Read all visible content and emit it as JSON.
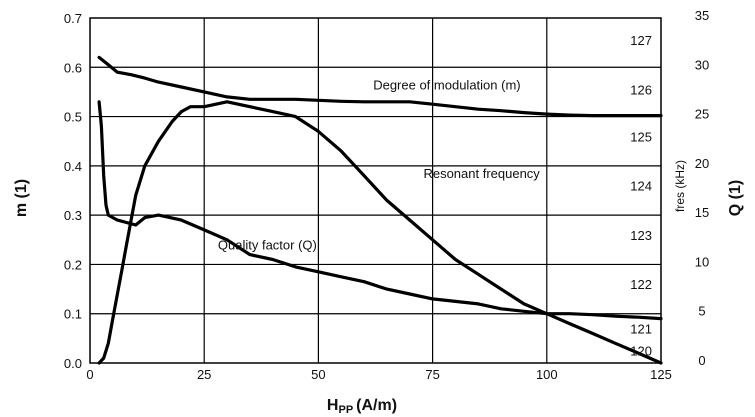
{
  "chart_data": {
    "type": "line",
    "xlabel": "H",
    "xlabel_sub": "PP",
    "xlabel_unit": "(A/m)",
    "ylabel_left": "m (1)",
    "ylabel_right": "Q (1)",
    "ylabel_fres": "fres (kHz)",
    "xlim": [
      0,
      125
    ],
    "ylim_left": [
      0,
      0.7
    ],
    "ylim_right": [
      0,
      35
    ],
    "grid": true,
    "x_ticks": [
      "0",
      "25",
      "50",
      "75",
      "100",
      "125"
    ],
    "y_left_ticks": [
      "0.0",
      "0.1",
      "0.2",
      "0.3",
      "0.4",
      "0.5",
      "0.6",
      "0.7"
    ],
    "y_right_ticks": [
      "0",
      "5",
      "10",
      "15",
      "20",
      "25",
      "30",
      "35"
    ],
    "fres_ticks": [
      {
        "label": "120",
        "m": 0.025
      },
      {
        "label": "121",
        "m": 0.07
      },
      {
        "label": "122",
        "m": 0.16
      },
      {
        "label": "123",
        "m": 0.26
      },
      {
        "label": "124",
        "m": 0.36
      },
      {
        "label": "125",
        "m": 0.46
      },
      {
        "label": "126",
        "m": 0.555
      },
      {
        "label": "127",
        "m": 0.655
      }
    ],
    "series": [
      {
        "name": "Degree of modulation (m)",
        "label_at": [
          62,
          0.555
        ],
        "x": [
          2,
          4,
          6,
          9,
          12,
          15,
          20,
          25,
          30,
          35,
          40,
          45,
          50,
          55,
          60,
          65,
          70,
          75,
          80,
          85,
          90,
          95,
          100,
          105,
          110,
          115,
          120,
          125
        ],
        "y": [
          0.62,
          0.605,
          0.59,
          0.585,
          0.578,
          0.57,
          0.56,
          0.55,
          0.54,
          0.535,
          0.535,
          0.535,
          0.533,
          0.531,
          0.53,
          0.53,
          0.53,
          0.525,
          0.52,
          0.515,
          0.512,
          0.508,
          0.505,
          0.503,
          0.502,
          0.502,
          0.502,
          0.502
        ]
      },
      {
        "name": "Resonant frequency",
        "label_at": [
          73,
          0.375
        ],
        "x": [
          2,
          3,
          4,
          5,
          6,
          7,
          8,
          9,
          10,
          12,
          15,
          18,
          20,
          22,
          25,
          30,
          35,
          40,
          45,
          50,
          55,
          60,
          65,
          70,
          75,
          80,
          85,
          90,
          95,
          100,
          105,
          110,
          115,
          120,
          125
        ],
        "y": [
          0.0,
          0.01,
          0.04,
          0.09,
          0.14,
          0.19,
          0.24,
          0.29,
          0.34,
          0.4,
          0.45,
          0.49,
          0.51,
          0.52,
          0.52,
          0.53,
          0.52,
          0.51,
          0.5,
          0.47,
          0.43,
          0.38,
          0.33,
          0.29,
          0.25,
          0.21,
          0.18,
          0.15,
          0.12,
          0.1,
          0.08,
          0.06,
          0.04,
          0.02,
          0.0
        ]
      },
      {
        "name": "Quality factor (Q)",
        "label_at": [
          28,
          0.23
        ],
        "x": [
          2,
          2.5,
          3,
          3.5,
          4,
          5,
          6,
          8,
          10,
          12,
          15,
          20,
          25,
          30,
          35,
          40,
          45,
          50,
          55,
          60,
          65,
          70,
          75,
          80,
          85,
          90,
          95,
          100,
          105,
          110,
          115,
          120,
          125
        ],
        "y": [
          0.53,
          0.48,
          0.38,
          0.32,
          0.3,
          0.295,
          0.29,
          0.285,
          0.28,
          0.295,
          0.3,
          0.29,
          0.27,
          0.25,
          0.22,
          0.21,
          0.195,
          0.185,
          0.175,
          0.165,
          0.15,
          0.14,
          0.13,
          0.125,
          0.12,
          0.11,
          0.105,
          0.1,
          0.1,
          0.098,
          0.095,
          0.093,
          0.09
        ]
      }
    ]
  }
}
